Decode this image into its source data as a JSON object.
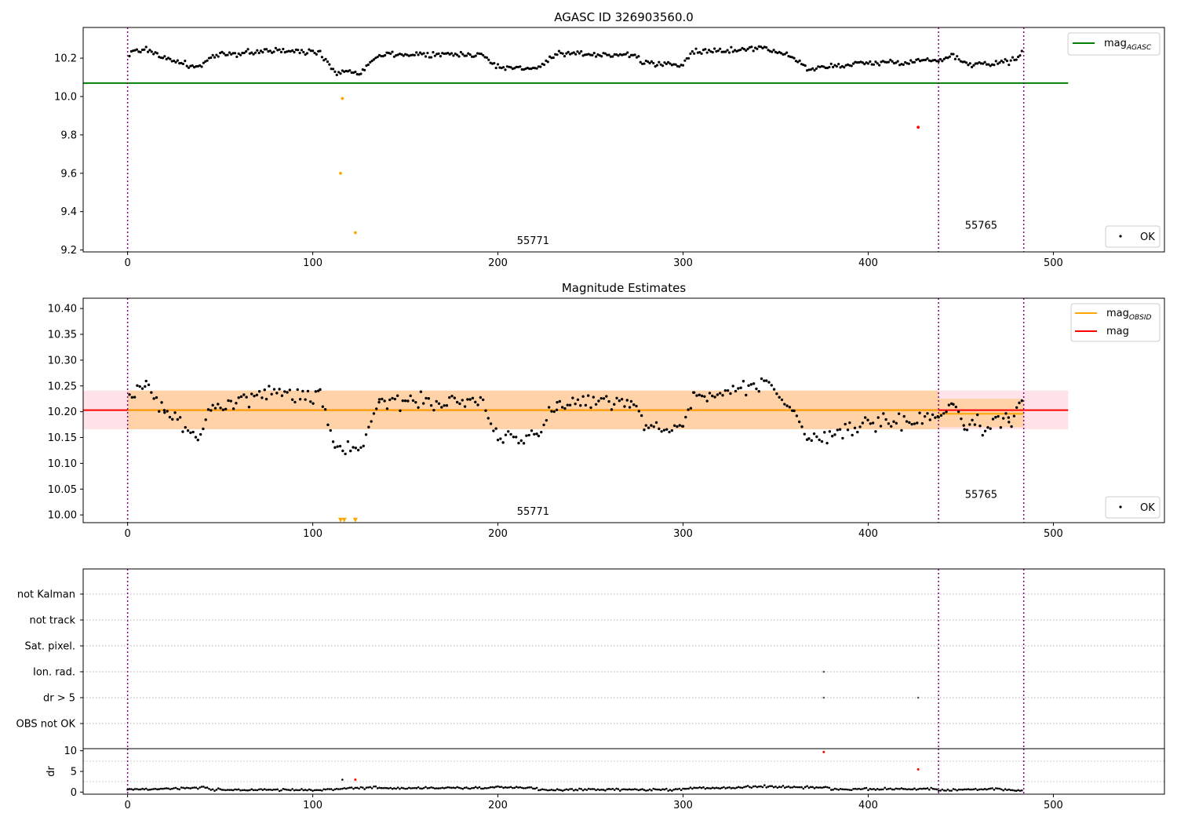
{
  "chart_data": [
    {
      "type": "scatter",
      "title": "AGASC ID 326903560.0",
      "xlim": [
        -24,
        560
      ],
      "ylim": [
        9.19,
        10.36
      ],
      "x_ticks": [
        0,
        100,
        200,
        300,
        400,
        500
      ],
      "y_ticks": [
        9.2,
        9.4,
        9.6,
        9.8,
        10.0,
        10.2
      ],
      "y_tick_labels": [
        "9.2",
        "9.4",
        "9.6",
        "9.8",
        "10.0",
        "10.2"
      ],
      "legend": {
        "placement": "top-right",
        "label": "mag",
        "subscript": "AGASC",
        "color": "#008000"
      },
      "legend_points": {
        "placement": "bottom-right",
        "label": "OK"
      },
      "reference_line": {
        "name": "mag_AGASC",
        "y": 10.07,
        "x": [
          -24,
          508
        ],
        "color": "#008000"
      },
      "obsid_boundaries": [
        0,
        438,
        484
      ],
      "annotations": [
        {
          "text": "55771",
          "x": 219,
          "y": 9.23
        },
        {
          "text": "55765",
          "x": 461,
          "y": 9.31
        }
      ],
      "outliers": [
        {
          "x": 116,
          "y": 9.99,
          "color": "#ffa500"
        },
        {
          "x": 115,
          "y": 9.6,
          "color": "#ffa500"
        },
        {
          "x": 123,
          "y": 9.29,
          "color": "#ffa500"
        },
        {
          "x": 427,
          "y": 9.84,
          "color": "#ff0000"
        }
      ],
      "segments": [
        {
          "x0": 1,
          "y0": 10.225,
          "x1": 10,
          "y1": 10.25
        },
        {
          "x0": 10,
          "y0": 10.25,
          "x1": 20,
          "y1": 10.2
        },
        {
          "x0": 20,
          "y0": 10.2,
          "x1": 38,
          "y1": 10.15
        },
        {
          "x0": 38,
          "y0": 10.15,
          "x1": 46,
          "y1": 10.21
        },
        {
          "x0": 46,
          "y0": 10.21,
          "x1": 75,
          "y1": 10.24
        },
        {
          "x0": 75,
          "y0": 10.24,
          "x1": 104,
          "y1": 10.23
        },
        {
          "x0": 104,
          "y0": 10.23,
          "x1": 112,
          "y1": 10.13
        },
        {
          "x0": 112,
          "y0": 10.13,
          "x1": 126,
          "y1": 10.13
        },
        {
          "x0": 126,
          "y0": 10.13,
          "x1": 136,
          "y1": 10.22
        },
        {
          "x0": 136,
          "y0": 10.22,
          "x1": 192,
          "y1": 10.22
        },
        {
          "x0": 192,
          "y0": 10.22,
          "x1": 200,
          "y1": 10.15
        },
        {
          "x0": 200,
          "y0": 10.15,
          "x1": 222,
          "y1": 10.15
        },
        {
          "x0": 222,
          "y0": 10.15,
          "x1": 232,
          "y1": 10.22
        },
        {
          "x0": 232,
          "y0": 10.22,
          "x1": 272,
          "y1": 10.22
        },
        {
          "x0": 272,
          "y0": 10.22,
          "x1": 280,
          "y1": 10.17
        },
        {
          "x0": 280,
          "y0": 10.17,
          "x1": 300,
          "y1": 10.17
        },
        {
          "x0": 300,
          "y0": 10.17,
          "x1": 306,
          "y1": 10.23
        },
        {
          "x0": 306,
          "y0": 10.23,
          "x1": 345,
          "y1": 10.255
        },
        {
          "x0": 345,
          "y0": 10.255,
          "x1": 360,
          "y1": 10.2
        },
        {
          "x0": 360,
          "y0": 10.2,
          "x1": 368,
          "y1": 10.14
        },
        {
          "x0": 368,
          "y0": 10.14,
          "x1": 390,
          "y1": 10.17
        },
        {
          "x0": 390,
          "y0": 10.17,
          "x1": 438,
          "y1": 10.19
        },
        {
          "x0": 438,
          "y0": 10.19,
          "x1": 446,
          "y1": 10.22
        },
        {
          "x0": 446,
          "y0": 10.22,
          "x1": 452,
          "y1": 10.17
        },
        {
          "x0": 452,
          "y0": 10.17,
          "x1": 476,
          "y1": 10.18
        },
        {
          "x0": 476,
          "y0": 10.18,
          "x1": 484,
          "y1": 10.23
        }
      ],
      "noise": 0.013
    },
    {
      "type": "scatter",
      "title": "Magnitude Estimates",
      "xlim": [
        -24,
        560
      ],
      "ylim": [
        9.985,
        10.42
      ],
      "x_ticks": [
        0,
        100,
        200,
        300,
        400,
        500
      ],
      "y_ticks": [
        10.0,
        10.05,
        10.1,
        10.15,
        10.2,
        10.25,
        10.3,
        10.35,
        10.4
      ],
      "y_tick_labels": [
        "10.00",
        "10.05",
        "10.10",
        "10.15",
        "10.20",
        "10.25",
        "10.30",
        "10.35",
        "10.40"
      ],
      "legend": [
        {
          "label": "mag",
          "subscript": "OBSID",
          "color": "#ffa500"
        },
        {
          "label": "mag",
          "subscript": "",
          "color": "#ff0000"
        }
      ],
      "legend_points": {
        "placement": "bottom-right",
        "label": "OK"
      },
      "mag_line": {
        "y": 10.203,
        "x": [
          -24,
          508
        ],
        "color": "#ff0000",
        "band": [
          10.166,
          10.241
        ],
        "band_color": "#ffe0e6"
      },
      "obsid_mag": [
        {
          "x0": 0,
          "x1": 438,
          "y": 10.203,
          "band": [
            10.166,
            10.241
          ]
        },
        {
          "x0": 438,
          "x1": 484,
          "y": 10.196,
          "band": [
            10.17,
            10.225
          ]
        }
      ],
      "obsid_boundaries": [
        0,
        438,
        484
      ],
      "annotations": [
        {
          "text": "55771",
          "x": 219,
          "y": 10.0
        },
        {
          "text": "55765",
          "x": 461,
          "y": 10.033
        }
      ],
      "lower_limits": [
        {
          "x": 115,
          "y": 9.99
        },
        {
          "x": 117,
          "y": 9.99
        },
        {
          "x": 123,
          "y": 9.99
        }
      ],
      "segments": [
        {
          "x0": 1,
          "y0": 10.225,
          "x1": 10,
          "y1": 10.25
        },
        {
          "x0": 10,
          "y0": 10.25,
          "x1": 20,
          "y1": 10.2
        },
        {
          "x0": 20,
          "y0": 10.2,
          "x1": 38,
          "y1": 10.15
        },
        {
          "x0": 38,
          "y0": 10.15,
          "x1": 46,
          "y1": 10.21
        },
        {
          "x0": 46,
          "y0": 10.21,
          "x1": 75,
          "y1": 10.24
        },
        {
          "x0": 75,
          "y0": 10.24,
          "x1": 104,
          "y1": 10.23
        },
        {
          "x0": 104,
          "y0": 10.23,
          "x1": 112,
          "y1": 10.13
        },
        {
          "x0": 112,
          "y0": 10.13,
          "x1": 126,
          "y1": 10.13
        },
        {
          "x0": 126,
          "y0": 10.13,
          "x1": 136,
          "y1": 10.22
        },
        {
          "x0": 136,
          "y0": 10.22,
          "x1": 192,
          "y1": 10.22
        },
        {
          "x0": 192,
          "y0": 10.22,
          "x1": 200,
          "y1": 10.15
        },
        {
          "x0": 200,
          "y0": 10.15,
          "x1": 222,
          "y1": 10.15
        },
        {
          "x0": 222,
          "y0": 10.15,
          "x1": 232,
          "y1": 10.22
        },
        {
          "x0": 232,
          "y0": 10.22,
          "x1": 272,
          "y1": 10.22
        },
        {
          "x0": 272,
          "y0": 10.22,
          "x1": 280,
          "y1": 10.17
        },
        {
          "x0": 280,
          "y0": 10.17,
          "x1": 300,
          "y1": 10.17
        },
        {
          "x0": 300,
          "y0": 10.17,
          "x1": 306,
          "y1": 10.23
        },
        {
          "x0": 306,
          "y0": 10.23,
          "x1": 345,
          "y1": 10.255
        },
        {
          "x0": 345,
          "y0": 10.255,
          "x1": 360,
          "y1": 10.2
        },
        {
          "x0": 360,
          "y0": 10.2,
          "x1": 368,
          "y1": 10.14
        },
        {
          "x0": 368,
          "y0": 10.14,
          "x1": 390,
          "y1": 10.17
        },
        {
          "x0": 390,
          "y0": 10.17,
          "x1": 438,
          "y1": 10.19
        },
        {
          "x0": 438,
          "y0": 10.19,
          "x1": 446,
          "y1": 10.22
        },
        {
          "x0": 446,
          "y0": 10.22,
          "x1": 452,
          "y1": 10.17
        },
        {
          "x0": 452,
          "y0": 10.17,
          "x1": 476,
          "y1": 10.18
        },
        {
          "x0": 476,
          "y0": 10.18,
          "x1": 484,
          "y1": 10.23
        }
      ],
      "noise": 0.013
    },
    {
      "type": "scatter",
      "title": "",
      "xlim": [
        -24,
        560
      ],
      "categories": [
        "OBS not OK",
        "dr > 5",
        "Ion. rad.",
        "Sat. pixel.",
        "not track",
        "not Kalman"
      ],
      "grid": true,
      "obsid_boundaries": [
        0,
        438,
        484
      ],
      "flags": [
        {
          "category": "Ion. rad.",
          "x": 376
        },
        {
          "category": "dr > 5",
          "x": 376
        },
        {
          "category": "dr > 5",
          "x": 427
        }
      ]
    },
    {
      "type": "scatter",
      "title": "",
      "xlim": [
        -24,
        560
      ],
      "ylim": [
        -0.5,
        10.5
      ],
      "ylabel": "dr",
      "x_ticks": [
        0,
        100,
        200,
        300,
        400,
        500
      ],
      "y_ticks": [
        0,
        5,
        10
      ],
      "y_tick_labels": [
        "0",
        "5",
        "10"
      ],
      "grid": true,
      "obsid_boundaries": [
        0,
        438,
        484
      ],
      "points_red": [
        {
          "x": 376,
          "y": 9.7
        },
        {
          "x": 427,
          "y": 5.5
        },
        {
          "x": 123,
          "y": 3.0
        }
      ],
      "points_extra": [
        {
          "x": 116,
          "y": 3.0
        }
      ],
      "segments": [
        {
          "x0": 0,
          "y0": 0.6,
          "x1": 40,
          "y1": 1.0
        },
        {
          "x0": 40,
          "y0": 1.3,
          "x1": 45,
          "y1": 0.8
        },
        {
          "x0": 45,
          "y0": 0.6,
          "x1": 100,
          "y1": 0.5
        },
        {
          "x0": 100,
          "y0": 0.5,
          "x1": 135,
          "y1": 1.2
        },
        {
          "x0": 135,
          "y0": 1.0,
          "x1": 195,
          "y1": 1.0
        },
        {
          "x0": 195,
          "y0": 1.2,
          "x1": 222,
          "y1": 1.0
        },
        {
          "x0": 222,
          "y0": 0.6,
          "x1": 300,
          "y1": 0.6
        },
        {
          "x0": 300,
          "y0": 0.8,
          "x1": 345,
          "y1": 1.4
        },
        {
          "x0": 345,
          "y0": 1.3,
          "x1": 380,
          "y1": 1.1
        },
        {
          "x0": 380,
          "y0": 0.7,
          "x1": 438,
          "y1": 0.8
        },
        {
          "x0": 438,
          "y0": 0.4,
          "x1": 470,
          "y1": 0.9
        },
        {
          "x0": 470,
          "y0": 0.8,
          "x1": 484,
          "y1": 0.3
        }
      ],
      "noise": 0.22
    }
  ]
}
